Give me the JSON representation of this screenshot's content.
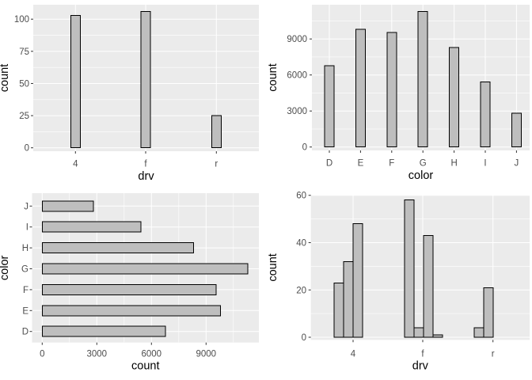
{
  "figure": {
    "background_color": "#FFFFFF",
    "panel_background": "#EBEBEB",
    "gridline_color": "#FFFFFF",
    "bar_fill": "#BEBEBE",
    "bar_stroke": "#000000",
    "tick_mark_color": "#333333",
    "tick_label_color": "#4D4D4D",
    "axis_title_color": "#000000"
  },
  "chart_data": [
    {
      "id": "top-left",
      "type": "bar",
      "orientation": "vertical",
      "title": "",
      "xlabel": "drv",
      "ylabel": "count",
      "categories": [
        "4",
        "f",
        "r"
      ],
      "values": [
        103,
        106,
        25
      ],
      "y_ticks": [
        0,
        25,
        50,
        75,
        100
      ],
      "ylim": [
        0,
        111
      ],
      "grid": true,
      "legend": false
    },
    {
      "id": "top-right",
      "type": "bar",
      "orientation": "vertical",
      "title": "",
      "xlabel": "color",
      "ylabel": "count",
      "categories": [
        "D",
        "E",
        "F",
        "G",
        "H",
        "I",
        "J"
      ],
      "values": [
        6775,
        9797,
        9542,
        11292,
        8304,
        5422,
        2808
      ],
      "y_ticks": [
        0,
        3000,
        6000,
        9000
      ],
      "ylim": [
        0,
        11860
      ],
      "grid": true,
      "legend": false
    },
    {
      "id": "bottom-left",
      "type": "bar",
      "orientation": "horizontal",
      "title": "",
      "xlabel": "count",
      "ylabel": "color",
      "categories_top_to_bottom": [
        "J",
        "I",
        "H",
        "G",
        "F",
        "E",
        "D"
      ],
      "values": [
        2808,
        5422,
        8304,
        11292,
        9542,
        9797,
        6775
      ],
      "x_ticks": [
        0,
        3000,
        6000,
        9000
      ],
      "xlim": [
        0,
        11860
      ],
      "grid": true,
      "legend": false
    },
    {
      "id": "bottom-right",
      "type": "bar",
      "orientation": "vertical",
      "position": "dodge",
      "title": "",
      "xlabel": "drv",
      "ylabel": "count",
      "categories": [
        "4",
        "f",
        "r"
      ],
      "series_per_category": [
        [
          23,
          32,
          48
        ],
        [
          58,
          4,
          43,
          1
        ],
        [
          4,
          21
        ]
      ],
      "y_ticks": [
        0,
        20,
        40,
        60
      ],
      "ylim": [
        0,
        61
      ],
      "grid": true,
      "legend": false
    }
  ]
}
